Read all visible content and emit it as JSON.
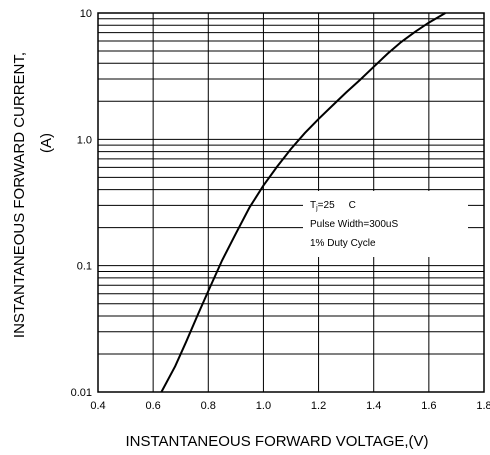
{
  "chart_data": {
    "type": "line",
    "title": "",
    "xlabel": "INSTANTANEOUS FORWARD VOLTAGE,(V)",
    "ylabel_line1": "INSTANTANEOUS FORWARD CURRENT,",
    "ylabel_line2": "(A)",
    "x_scale": "linear",
    "y_scale": "log",
    "xlim": [
      0.4,
      1.8
    ],
    "ylim": [
      0.01,
      10
    ],
    "x_ticks": [
      0.4,
      0.6,
      0.8,
      1.0,
      1.2,
      1.4,
      1.6,
      1.8
    ],
    "x_tick_labels": [
      "0.4",
      "0.6",
      "0.8",
      "1.0",
      "1.2",
      "1.4",
      "1.6",
      "1.8"
    ],
    "y_ticks": [
      0.01,
      0.1,
      1.0,
      10
    ],
    "y_tick_labels": [
      "0.01",
      "0.1",
      "1.0",
      "10"
    ],
    "grid": true,
    "series": [
      {
        "x": [
          0.63,
          0.68,
          0.72,
          0.76,
          0.8,
          0.85,
          0.9,
          0.95,
          1.0,
          1.05,
          1.1,
          1.15,
          1.2,
          1.25,
          1.3,
          1.35,
          1.4,
          1.45,
          1.5,
          1.55,
          1.6,
          1.66
        ],
        "y": [
          0.01,
          0.016,
          0.025,
          0.04,
          0.063,
          0.11,
          0.18,
          0.29,
          0.43,
          0.61,
          0.84,
          1.12,
          1.45,
          1.85,
          2.35,
          2.95,
          3.75,
          4.75,
          5.9,
          7.1,
          8.4,
          10.0
        ]
      }
    ],
    "annotation": {
      "line1_prefix": "T",
      "line1_sub": "j",
      "line1_mid": "=25",
      "line1_unit": "C",
      "line2": "Pulse Width=300uS",
      "line3": "1% Duty Cycle"
    }
  }
}
